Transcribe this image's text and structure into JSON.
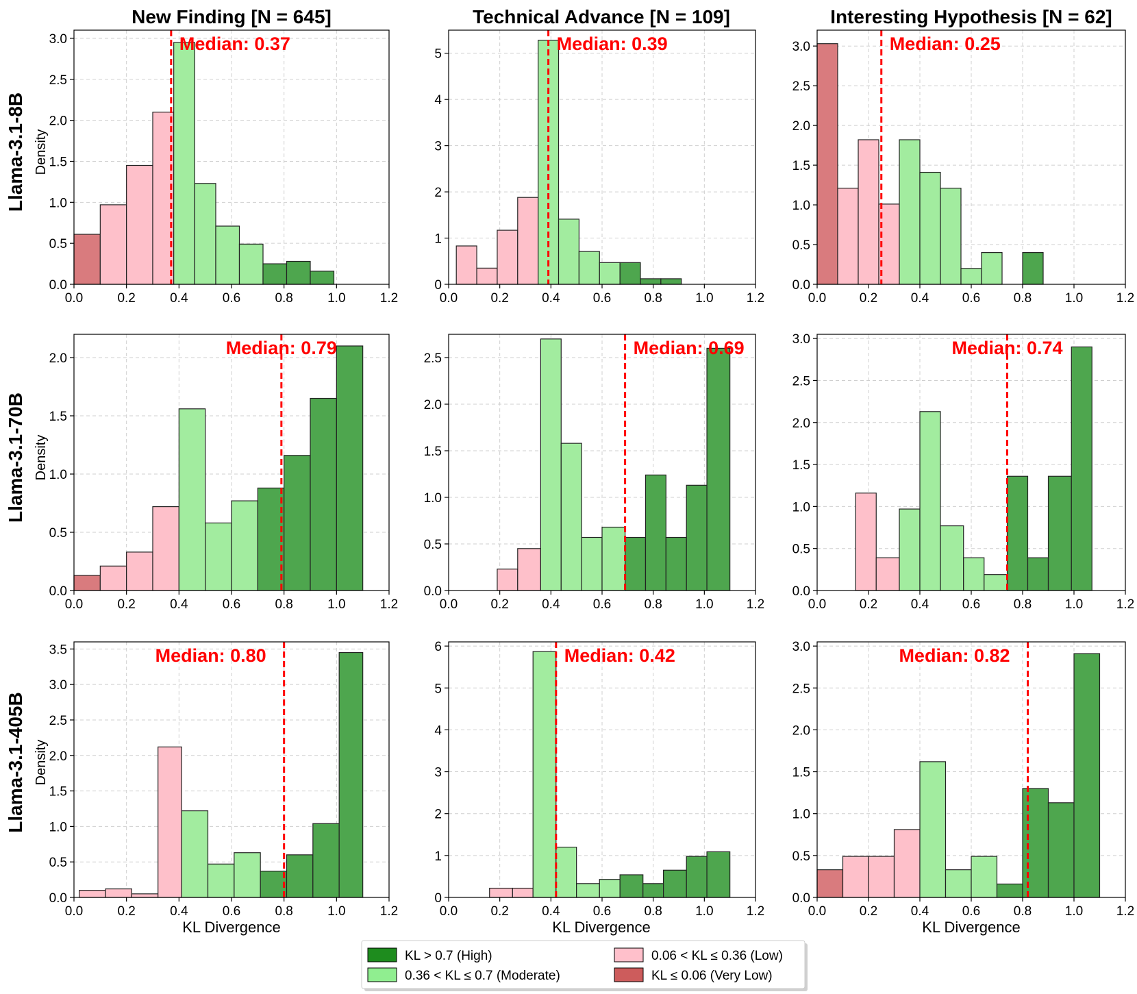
{
  "colors": {
    "high": "#4ea64e",
    "moderate": "#a2ec9f",
    "low": "#fec0ca",
    "very_low": "#d97b7e",
    "median": "#ff0000",
    "legend_high": "#1e8c1e",
    "legend_moderate": "#90ee90",
    "legend_low": "#ffc0cb",
    "legend_very_low": "#cd5c5c"
  },
  "chart_data": [
    {
      "type": "bar",
      "id": "r0c0",
      "column_title": "New Finding [N = 645]",
      "row_label": "Llama-3.1-8B",
      "ylabel": "Density",
      "xlabel": "",
      "xlim": [
        0,
        1.2
      ],
      "ylim": [
        0,
        3.1
      ],
      "xticks": [
        0.0,
        0.2,
        0.4,
        0.6,
        0.8,
        1.0,
        1.2
      ],
      "yticks": [
        0.0,
        0.5,
        1.0,
        1.5,
        2.0,
        2.5,
        3.0
      ],
      "tick_decimals": 1,
      "median": 0.37,
      "median_label": "Median: 0.37",
      "median_label_pos": "right",
      "bins": [
        {
          "x0": 0.0,
          "x1": 0.1,
          "density": 0.61,
          "category": "very_low"
        },
        {
          "x0": 0.1,
          "x1": 0.2,
          "density": 0.97,
          "category": "low"
        },
        {
          "x0": 0.2,
          "x1": 0.3,
          "density": 1.45,
          "category": "low"
        },
        {
          "x0": 0.3,
          "x1": 0.38,
          "density": 2.1,
          "category": "low"
        },
        {
          "x0": 0.38,
          "x1": 0.46,
          "density": 2.95,
          "category": "moderate"
        },
        {
          "x0": 0.46,
          "x1": 0.54,
          "density": 1.23,
          "category": "moderate"
        },
        {
          "x0": 0.54,
          "x1": 0.63,
          "density": 0.71,
          "category": "moderate"
        },
        {
          "x0": 0.63,
          "x1": 0.72,
          "density": 0.49,
          "category": "moderate"
        },
        {
          "x0": 0.72,
          "x1": 0.81,
          "density": 0.25,
          "category": "high"
        },
        {
          "x0": 0.81,
          "x1": 0.9,
          "density": 0.28,
          "category": "high"
        },
        {
          "x0": 0.9,
          "x1": 0.99,
          "density": 0.16,
          "category": "high"
        }
      ]
    },
    {
      "type": "bar",
      "id": "r0c1",
      "column_title": "Technical Advance [N = 109]",
      "ylabel": "",
      "xlabel": "",
      "xlim": [
        0,
        1.2
      ],
      "ylim": [
        0,
        5.5
      ],
      "xticks": [
        0.0,
        0.2,
        0.4,
        0.6,
        0.8,
        1.0,
        1.2
      ],
      "yticks": [
        0,
        1,
        2,
        3,
        4,
        5
      ],
      "tick_decimals": 0,
      "median": 0.39,
      "median_label": "Median: 0.39",
      "median_label_pos": "right",
      "bins": [
        {
          "x0": 0.03,
          "x1": 0.11,
          "density": 0.83,
          "category": "low"
        },
        {
          "x0": 0.11,
          "x1": 0.19,
          "density": 0.35,
          "category": "low"
        },
        {
          "x0": 0.19,
          "x1": 0.27,
          "density": 1.17,
          "category": "low"
        },
        {
          "x0": 0.27,
          "x1": 0.35,
          "density": 1.88,
          "category": "low"
        },
        {
          "x0": 0.35,
          "x1": 0.43,
          "density": 5.28,
          "category": "moderate"
        },
        {
          "x0": 0.43,
          "x1": 0.51,
          "density": 1.41,
          "category": "moderate"
        },
        {
          "x0": 0.51,
          "x1": 0.59,
          "density": 0.71,
          "category": "moderate"
        },
        {
          "x0": 0.59,
          "x1": 0.67,
          "density": 0.47,
          "category": "moderate"
        },
        {
          "x0": 0.67,
          "x1": 0.75,
          "density": 0.47,
          "category": "high"
        },
        {
          "x0": 0.75,
          "x1": 0.83,
          "density": 0.12,
          "category": "high"
        },
        {
          "x0": 0.83,
          "x1": 0.91,
          "density": 0.12,
          "category": "high"
        }
      ]
    },
    {
      "type": "bar",
      "id": "r0c2",
      "column_title": "Interesting Hypothesis [N = 62]",
      "ylabel": "",
      "xlabel": "",
      "xlim": [
        0,
        1.2
      ],
      "ylim": [
        0,
        3.2
      ],
      "xticks": [
        0.0,
        0.2,
        0.4,
        0.6,
        0.8,
        1.0,
        1.2
      ],
      "yticks": [
        0.0,
        0.5,
        1.0,
        1.5,
        2.0,
        2.5,
        3.0
      ],
      "tick_decimals": 1,
      "median": 0.25,
      "median_label": "Median: 0.25",
      "median_label_pos": "right",
      "bins": [
        {
          "x0": 0.0,
          "x1": 0.08,
          "density": 3.03,
          "category": "very_low"
        },
        {
          "x0": 0.08,
          "x1": 0.16,
          "density": 1.21,
          "category": "low"
        },
        {
          "x0": 0.16,
          "x1": 0.24,
          "density": 1.82,
          "category": "low"
        },
        {
          "x0": 0.24,
          "x1": 0.32,
          "density": 1.01,
          "category": "low"
        },
        {
          "x0": 0.32,
          "x1": 0.4,
          "density": 1.82,
          "category": "moderate"
        },
        {
          "x0": 0.4,
          "x1": 0.48,
          "density": 1.41,
          "category": "moderate"
        },
        {
          "x0": 0.48,
          "x1": 0.56,
          "density": 1.21,
          "category": "moderate"
        },
        {
          "x0": 0.56,
          "x1": 0.64,
          "density": 0.2,
          "category": "moderate"
        },
        {
          "x0": 0.64,
          "x1": 0.72,
          "density": 0.4,
          "category": "moderate"
        },
        {
          "x0": 0.8,
          "x1": 0.88,
          "density": 0.4,
          "category": "high"
        }
      ]
    },
    {
      "type": "bar",
      "id": "r1c0",
      "row_label": "Llama-3.1-70B",
      "ylabel": "Density",
      "xlabel": "",
      "xlim": [
        0,
        1.2
      ],
      "ylim": [
        0,
        2.2
      ],
      "xticks": [
        0.0,
        0.2,
        0.4,
        0.6,
        0.8,
        1.0,
        1.2
      ],
      "yticks": [
        0.0,
        0.5,
        1.0,
        1.5,
        2.0
      ],
      "tick_decimals": 1,
      "median": 0.79,
      "median_label": "Median: 0.79",
      "median_label_pos": "center",
      "bins": [
        {
          "x0": 0.0,
          "x1": 0.1,
          "density": 0.13,
          "category": "very_low"
        },
        {
          "x0": 0.1,
          "x1": 0.2,
          "density": 0.21,
          "category": "low"
        },
        {
          "x0": 0.2,
          "x1": 0.3,
          "density": 0.33,
          "category": "low"
        },
        {
          "x0": 0.3,
          "x1": 0.4,
          "density": 0.72,
          "category": "low"
        },
        {
          "x0": 0.4,
          "x1": 0.5,
          "density": 1.56,
          "category": "moderate"
        },
        {
          "x0": 0.5,
          "x1": 0.6,
          "density": 0.58,
          "category": "moderate"
        },
        {
          "x0": 0.6,
          "x1": 0.7,
          "density": 0.77,
          "category": "moderate"
        },
        {
          "x0": 0.7,
          "x1": 0.8,
          "density": 0.88,
          "category": "high"
        },
        {
          "x0": 0.8,
          "x1": 0.9,
          "density": 1.16,
          "category": "high"
        },
        {
          "x0": 0.9,
          "x1": 1.0,
          "density": 1.65,
          "category": "high"
        },
        {
          "x0": 1.0,
          "x1": 1.1,
          "density": 2.1,
          "category": "high"
        }
      ]
    },
    {
      "type": "bar",
      "id": "r1c1",
      "ylabel": "",
      "xlabel": "",
      "xlim": [
        0,
        1.2
      ],
      "ylim": [
        0,
        2.75
      ],
      "xticks": [
        0.0,
        0.2,
        0.4,
        0.6,
        0.8,
        1.0,
        1.2
      ],
      "yticks": [
        0.0,
        0.5,
        1.0,
        1.5,
        2.0,
        2.5
      ],
      "tick_decimals": 1,
      "median": 0.69,
      "median_label": "Median: 0.69",
      "median_label_pos": "right",
      "bins": [
        {
          "x0": 0.19,
          "x1": 0.27,
          "density": 0.23,
          "category": "low"
        },
        {
          "x0": 0.27,
          "x1": 0.36,
          "density": 0.45,
          "category": "low"
        },
        {
          "x0": 0.36,
          "x1": 0.44,
          "density": 2.7,
          "category": "moderate"
        },
        {
          "x0": 0.44,
          "x1": 0.52,
          "density": 1.58,
          "category": "moderate"
        },
        {
          "x0": 0.52,
          "x1": 0.6,
          "density": 0.57,
          "category": "moderate"
        },
        {
          "x0": 0.6,
          "x1": 0.69,
          "density": 0.68,
          "category": "moderate"
        },
        {
          "x0": 0.69,
          "x1": 0.77,
          "density": 0.57,
          "category": "high"
        },
        {
          "x0": 0.77,
          "x1": 0.85,
          "density": 1.24,
          "category": "high"
        },
        {
          "x0": 0.85,
          "x1": 0.93,
          "density": 0.57,
          "category": "high"
        },
        {
          "x0": 0.93,
          "x1": 1.01,
          "density": 1.13,
          "category": "high"
        },
        {
          "x0": 1.01,
          "x1": 1.1,
          "density": 2.6,
          "category": "high"
        }
      ]
    },
    {
      "type": "bar",
      "id": "r1c2",
      "ylabel": "",
      "xlabel": "",
      "xlim": [
        0,
        1.2
      ],
      "ylim": [
        0,
        3.05
      ],
      "xticks": [
        0.0,
        0.2,
        0.4,
        0.6,
        0.8,
        1.0,
        1.2
      ],
      "yticks": [
        0.0,
        0.5,
        1.0,
        1.5,
        2.0,
        2.5,
        3.0
      ],
      "tick_decimals": 1,
      "median": 0.74,
      "median_label": "Median: 0.74",
      "median_label_pos": "center",
      "bins": [
        {
          "x0": 0.15,
          "x1": 0.23,
          "density": 1.16,
          "category": "low"
        },
        {
          "x0": 0.23,
          "x1": 0.32,
          "density": 0.39,
          "category": "low"
        },
        {
          "x0": 0.32,
          "x1": 0.4,
          "density": 0.97,
          "category": "moderate"
        },
        {
          "x0": 0.4,
          "x1": 0.48,
          "density": 2.13,
          "category": "moderate"
        },
        {
          "x0": 0.48,
          "x1": 0.57,
          "density": 0.77,
          "category": "moderate"
        },
        {
          "x0": 0.57,
          "x1": 0.65,
          "density": 0.39,
          "category": "moderate"
        },
        {
          "x0": 0.65,
          "x1": 0.74,
          "density": 0.19,
          "category": "moderate"
        },
        {
          "x0": 0.74,
          "x1": 0.82,
          "density": 1.36,
          "category": "high"
        },
        {
          "x0": 0.82,
          "x1": 0.9,
          "density": 0.39,
          "category": "high"
        },
        {
          "x0": 0.9,
          "x1": 0.99,
          "density": 1.36,
          "category": "high"
        },
        {
          "x0": 0.99,
          "x1": 1.07,
          "density": 2.9,
          "category": "high"
        }
      ]
    },
    {
      "type": "bar",
      "id": "r2c0",
      "row_label": "Llama-3.1-405B",
      "ylabel": "Density",
      "xlabel": "KL Divergence",
      "xlim": [
        0,
        1.2
      ],
      "ylim": [
        0,
        3.6
      ],
      "xticks": [
        0.0,
        0.2,
        0.4,
        0.6,
        0.8,
        1.0,
        1.2
      ],
      "yticks": [
        0.0,
        0.5,
        1.0,
        1.5,
        2.0,
        2.5,
        3.0,
        3.5
      ],
      "tick_decimals": 1,
      "median": 0.8,
      "median_label": "Median: 0.80",
      "median_label_pos": "left",
      "bins": [
        {
          "x0": 0.02,
          "x1": 0.12,
          "density": 0.1,
          "category": "low"
        },
        {
          "x0": 0.12,
          "x1": 0.22,
          "density": 0.12,
          "category": "low"
        },
        {
          "x0": 0.22,
          "x1": 0.32,
          "density": 0.05,
          "category": "low"
        },
        {
          "x0": 0.32,
          "x1": 0.41,
          "density": 2.12,
          "category": "low"
        },
        {
          "x0": 0.41,
          "x1": 0.51,
          "density": 1.22,
          "category": "moderate"
        },
        {
          "x0": 0.51,
          "x1": 0.61,
          "density": 0.47,
          "category": "moderate"
        },
        {
          "x0": 0.61,
          "x1": 0.71,
          "density": 0.63,
          "category": "moderate"
        },
        {
          "x0": 0.71,
          "x1": 0.81,
          "density": 0.37,
          "category": "high"
        },
        {
          "x0": 0.81,
          "x1": 0.91,
          "density": 0.6,
          "category": "high"
        },
        {
          "x0": 0.91,
          "x1": 1.01,
          "density": 1.04,
          "category": "high"
        },
        {
          "x0": 1.01,
          "x1": 1.1,
          "density": 3.45,
          "category": "high"
        }
      ]
    },
    {
      "type": "bar",
      "id": "r2c1",
      "ylabel": "",
      "xlabel": "KL Divergence",
      "xlim": [
        0,
        1.2
      ],
      "ylim": [
        0,
        6.1
      ],
      "xticks": [
        0.0,
        0.2,
        0.4,
        0.6,
        0.8,
        1.0,
        1.2
      ],
      "yticks": [
        0,
        1,
        2,
        3,
        4,
        5,
        6
      ],
      "tick_decimals": 0,
      "median": 0.42,
      "median_label": "Median: 0.42",
      "median_label_pos": "right",
      "bins": [
        {
          "x0": 0.16,
          "x1": 0.25,
          "density": 0.22,
          "category": "low"
        },
        {
          "x0": 0.25,
          "x1": 0.33,
          "density": 0.22,
          "category": "low"
        },
        {
          "x0": 0.33,
          "x1": 0.42,
          "density": 5.87,
          "category": "moderate"
        },
        {
          "x0": 0.42,
          "x1": 0.5,
          "density": 1.2,
          "category": "moderate"
        },
        {
          "x0": 0.5,
          "x1": 0.59,
          "density": 0.33,
          "category": "moderate"
        },
        {
          "x0": 0.59,
          "x1": 0.67,
          "density": 0.43,
          "category": "moderate"
        },
        {
          "x0": 0.67,
          "x1": 0.76,
          "density": 0.54,
          "category": "high"
        },
        {
          "x0": 0.76,
          "x1": 0.84,
          "density": 0.33,
          "category": "high"
        },
        {
          "x0": 0.84,
          "x1": 0.93,
          "density": 0.65,
          "category": "high"
        },
        {
          "x0": 0.93,
          "x1": 1.01,
          "density": 0.98,
          "category": "high"
        },
        {
          "x0": 1.01,
          "x1": 1.1,
          "density": 1.09,
          "category": "high"
        }
      ]
    },
    {
      "type": "bar",
      "id": "r2c2",
      "ylabel": "",
      "xlabel": "KL Divergence",
      "xlim": [
        0,
        1.2
      ],
      "ylim": [
        0,
        3.05
      ],
      "xticks": [
        0.0,
        0.2,
        0.4,
        0.6,
        0.8,
        1.0,
        1.2
      ],
      "yticks": [
        0.0,
        0.5,
        1.0,
        1.5,
        2.0,
        2.5,
        3.0
      ],
      "tick_decimals": 1,
      "median": 0.82,
      "median_label": "Median: 0.82",
      "median_label_pos": "left",
      "bins": [
        {
          "x0": 0.0,
          "x1": 0.1,
          "density": 0.33,
          "category": "very_low"
        },
        {
          "x0": 0.1,
          "x1": 0.2,
          "density": 0.49,
          "category": "low"
        },
        {
          "x0": 0.2,
          "x1": 0.3,
          "density": 0.49,
          "category": "low"
        },
        {
          "x0": 0.3,
          "x1": 0.4,
          "density": 0.81,
          "category": "low"
        },
        {
          "x0": 0.4,
          "x1": 0.5,
          "density": 1.62,
          "category": "moderate"
        },
        {
          "x0": 0.5,
          "x1": 0.6,
          "density": 0.33,
          "category": "moderate"
        },
        {
          "x0": 0.6,
          "x1": 0.7,
          "density": 0.49,
          "category": "moderate"
        },
        {
          "x0": 0.7,
          "x1": 0.8,
          "density": 0.16,
          "category": "high"
        },
        {
          "x0": 0.8,
          "x1": 0.9,
          "density": 1.3,
          "category": "high"
        },
        {
          "x0": 0.9,
          "x1": 1.0,
          "density": 1.13,
          "category": "high"
        },
        {
          "x0": 1.0,
          "x1": 1.1,
          "density": 2.91,
          "category": "high"
        }
      ]
    }
  ],
  "legend": {
    "placement": "bottom-center",
    "items": [
      {
        "key": "legend_high",
        "label": "KL > 0.7 (High)"
      },
      {
        "key": "legend_moderate",
        "label": "0.36 < KL ≤ 0.7 (Moderate)"
      },
      {
        "key": "legend_low",
        "label": "0.06 < KL ≤ 0.36 (Low)"
      },
      {
        "key": "legend_very_low",
        "label": "KL ≤ 0.06 (Very Low)"
      }
    ]
  }
}
